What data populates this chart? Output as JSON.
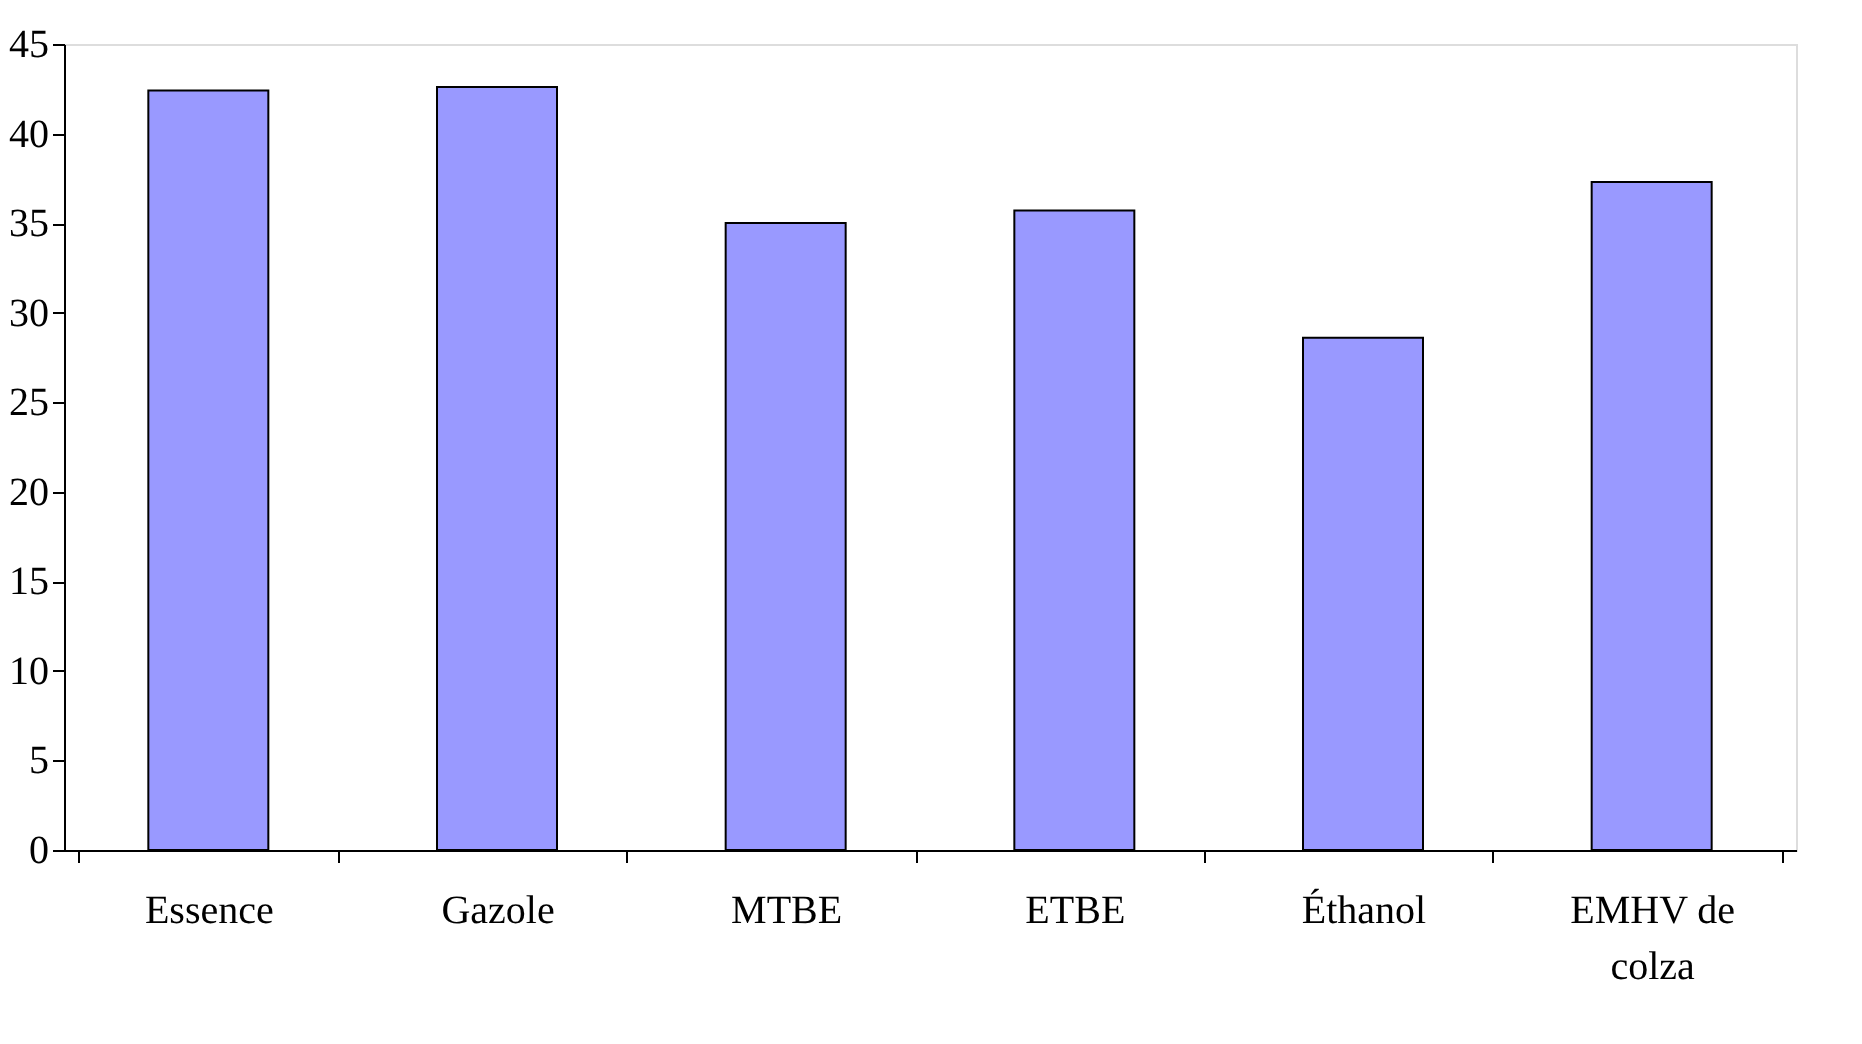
{
  "chart_data": {
    "type": "bar",
    "categories": [
      "Essence",
      "Gazole",
      "MTBE",
      "ETBE",
      "Éthanol",
      "EMHV de colza"
    ],
    "values": [
      42.4,
      42.6,
      35.0,
      35.7,
      28.6,
      37.3
    ],
    "color": "#9999ff",
    "ylim": [
      0,
      45
    ],
    "yticks": [
      0,
      5,
      10,
      15,
      20,
      25,
      30,
      35,
      40,
      45
    ],
    "grid": false
  }
}
